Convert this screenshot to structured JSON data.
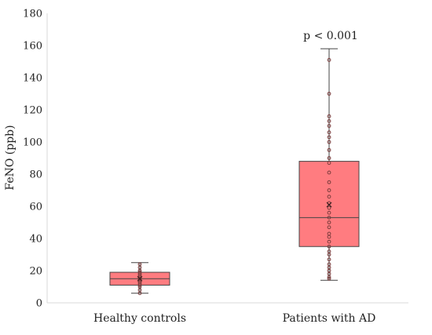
{
  "chart_data": {
    "type": "boxplot",
    "ylabel": "FeNO (ppb)",
    "ylim": [
      0,
      180
    ],
    "yticks": [
      0,
      20,
      40,
      60,
      80,
      100,
      120,
      140,
      160,
      180
    ],
    "grid": false,
    "categories": [
      "Healthy controls",
      "Patients with AD"
    ],
    "boxes": [
      {
        "category": "Healthy controls",
        "min": 6,
        "q1": 11,
        "median": 15,
        "q3": 19,
        "max": 25,
        "mean": 15,
        "points": [
          6,
          8,
          10,
          11,
          12,
          13,
          14,
          15,
          15,
          16,
          17,
          18,
          19,
          20,
          22,
          24
        ]
      },
      {
        "category": "Patients with AD",
        "min": 14,
        "q1": 35,
        "median": 53,
        "q3": 88,
        "max": 158,
        "mean": 61,
        "points": [
          15,
          16,
          18,
          20,
          22,
          24,
          27,
          30,
          32,
          35,
          38,
          41,
          43,
          47,
          50,
          53,
          56,
          59,
          62,
          66,
          70,
          75,
          81,
          87,
          90,
          95,
          100,
          103,
          106,
          110,
          113,
          116,
          130,
          151
        ]
      }
    ],
    "annotations": [
      {
        "category": "Patients with AD",
        "text": "p < 0.001"
      }
    ],
    "colors": {
      "box_fill": "#ff7c80",
      "box_stroke": "#444444",
      "point": "#7a3b3b",
      "axis": "#d9d9d9"
    }
  }
}
